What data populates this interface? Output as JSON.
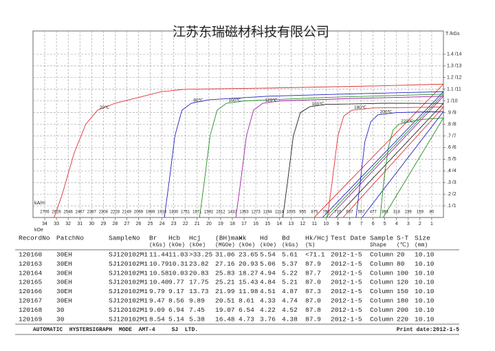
{
  "chart_data": {
    "type": "line",
    "title": "江苏东瑞磁材科技有限公司",
    "x_label": "kOe",
    "x2_label": "kA/m",
    "y_label": "T /kGs",
    "xlim": [
      35,
      0
    ],
    "xticks": [
      34,
      33,
      32,
      31,
      30,
      29,
      28,
      27,
      26,
      25,
      24,
      23,
      22,
      21,
      20,
      19,
      18,
      17,
      16,
      15,
      14,
      13,
      12,
      11,
      10,
      9,
      8,
      7,
      6,
      5,
      4,
      3,
      2,
      1
    ],
    "x2lim": [
      2785,
      0
    ],
    "x2ticks": [
      2706,
      2626,
      2546,
      2467,
      2387,
      2308,
      2228,
      2149,
      2069,
      1989,
      1910,
      1830,
      1751,
      1671,
      1592,
      1512,
      1432,
      1353,
      1273,
      1194,
      1114,
      1035,
      955,
      875,
      796,
      716,
      637,
      557,
      477,
      398,
      318,
      239,
      159,
      80
    ],
    "ylim": [
      0,
      1.6
    ],
    "yticks": [
      {
        "value": 0.1,
        "label": ".1 /1"
      },
      {
        "value": 0.2,
        "label": ".2 /2"
      },
      {
        "value": 0.3,
        "label": ".3 /3"
      },
      {
        "value": 0.4,
        "label": ".4 /4"
      },
      {
        "value": 0.5,
        "label": ".5 /5"
      },
      {
        "value": 0.6,
        "label": ".6 /6"
      },
      {
        "value": 0.7,
        "label": ".7 /7"
      },
      {
        "value": 0.8,
        "label": ".8 /8"
      },
      {
        "value": 0.9,
        "label": ".9 /9"
      },
      {
        "value": 1.0,
        "label": "1 /10"
      },
      {
        "value": 1.1,
        "label": "1.1 /11"
      },
      {
        "value": 1.2,
        "label": "1.2 /12"
      },
      {
        "value": 1.3,
        "label": "1.3 /13"
      },
      {
        "value": 1.4,
        "label": "1.4 /14"
      }
    ],
    "grid": true,
    "series": [
      {
        "name": "20℃",
        "color": "#e03030",
        "x": [
          33.2,
          32.5,
          31.5,
          30.5,
          29.5,
          28,
          26,
          24,
          22,
          15,
          5,
          0
        ],
        "values": [
          0,
          0.2,
          0.55,
          0.8,
          0.92,
          0.98,
          1.03,
          1.08,
          1.1,
          1.11,
          1.13,
          1.144
        ],
        "b_x": [
          11.03,
          0
        ],
        "b_values": [
          0,
          1.144
        ]
      },
      {
        "name": "80℃",
        "color": "#2020c0",
        "x": [
          23.8,
          23.4,
          22.9,
          22.3,
          21.5,
          20,
          15,
          8,
          0
        ],
        "values": [
          0,
          0.3,
          0.7,
          0.92,
          0.98,
          1.01,
          1.04,
          1.06,
          1.079
        ],
        "b_x": [
          10.31,
          0
        ],
        "b_values": [
          0,
          1.079
        ]
      },
      {
        "name": "100℃",
        "color": "#209020",
        "x": [
          20.8,
          20.4,
          19.9,
          19.3,
          18.5,
          17,
          10,
          0
        ],
        "values": [
          0,
          0.3,
          0.7,
          0.92,
          0.98,
          1.0,
          1.03,
          1.058
        ],
        "b_x": [
          10.03,
          0
        ],
        "b_values": [
          0,
          1.058
        ]
      },
      {
        "name": "120℃",
        "color": "#a020a0",
        "x": [
          17.7,
          17.3,
          16.8,
          16.2,
          15.4,
          14,
          8,
          0
        ],
        "values": [
          0,
          0.3,
          0.7,
          0.92,
          0.98,
          1.0,
          1.02,
          1.04
        ],
        "b_x": [
          9.77,
          0
        ],
        "b_values": [
          0,
          1.04
        ]
      },
      {
        "name": "150℃",
        "color": "#202020",
        "x": [
          13.7,
          13.3,
          12.8,
          12.2,
          11.4,
          10,
          5,
          0
        ],
        "values": [
          0,
          0.3,
          0.7,
          0.9,
          0.95,
          0.97,
          0.98,
          0.979
        ],
        "b_x": [
          9.17,
          0
        ],
        "b_values": [
          0,
          0.979
        ]
      },
      {
        "name": "180℃",
        "color": "#e03030",
        "x": [
          9.9,
          9.5,
          9.0,
          8.5,
          7.8,
          6,
          0
        ],
        "values": [
          0,
          0.3,
          0.7,
          0.87,
          0.92,
          0.94,
          0.947
        ],
        "b_x": [
          8.56,
          0
        ],
        "b_values": [
          0,
          0.947
        ]
      },
      {
        "name": "200℃",
        "color": "#2020c0",
        "x": [
          7.45,
          7.1,
          6.7,
          6.2,
          5.6,
          4,
          0
        ],
        "values": [
          0,
          0.3,
          0.65,
          0.82,
          0.88,
          0.9,
          0.909
        ],
        "b_x": [
          6.94,
          0
        ],
        "b_values": [
          0,
          0.909
        ]
      },
      {
        "name": "220℃",
        "color": "#209020",
        "x": [
          5.4,
          5.1,
          4.7,
          4.3,
          3.8,
          2,
          0
        ],
        "values": [
          0,
          0.3,
          0.6,
          0.75,
          0.8,
          0.84,
          0.854
        ],
        "b_x": [
          5.14,
          0
        ],
        "b_values": [
          0,
          0.854
        ]
      }
    ]
  },
  "table": {
    "header": [
      "RecordNo",
      "PatchNo",
      "SampleNo",
      "Br",
      "Hcb",
      "Hcj",
      "(BH)max",
      "Hk",
      "Hd",
      "Bd",
      "Hk/Hcj",
      "Test Date",
      "Sample",
      "S-T",
      "Size"
    ],
    "units": [
      null,
      null,
      null,
      "(kGs)",
      "(kOe)",
      "(kOe)",
      "(MGOe)",
      "(kOe)",
      "(kOe)",
      "(kGs)",
      "(%)",
      null,
      "Shape",
      "(℃)",
      "(mm)"
    ],
    "row_colors": [
      "#e03030",
      "#2020c0",
      "#209020",
      "#a020a0",
      "#202020",
      "#e03030",
      "#2020c0",
      "#209020"
    ],
    "rows": [
      [
        "120160",
        "30EH",
        "SJ120102M1",
        "11.44",
        "11.03",
        ">33.25",
        "31.06",
        "23.65",
        "5.54",
        "5.61",
        "<71.1",
        "2012-1-5",
        "Column",
        "20",
        "10.10"
      ],
      [
        "120163",
        "30EH",
        "SJ120102M1",
        "10.79",
        "10.31",
        "23.82",
        "27.16",
        "20.93",
        "5.06",
        "5.37",
        "87.9",
        "2012-1-5",
        "Column",
        "80",
        "10.10"
      ],
      [
        "120164",
        "30EH",
        "SJ120102M1",
        "10.58",
        "10.03",
        "20.83",
        "25.83",
        "18.27",
        "4.94",
        "5.22",
        "87.7",
        "2012-1-5",
        "Column",
        "100",
        "10.10"
      ],
      [
        "120165",
        "30EH",
        "SJ120102M1",
        "10.40",
        "9.77",
        "17.75",
        "25.21",
        "15.43",
        "4.84",
        "5.21",
        "87.0",
        "2012-1-5",
        "Column",
        "120",
        "10.10"
      ],
      [
        "120166",
        "30EH",
        "SJ120102M1",
        "9.79",
        "9.17",
        "13.73",
        "21.99",
        "11.98",
        "4.51",
        "4.87",
        "87.3",
        "2012-1-5",
        "Column",
        "150",
        "10.10"
      ],
      [
        "120167",
        "30EH",
        "SJ120102M1",
        "9.47",
        "8.56",
        "9.89",
        "20.51",
        "8.61",
        "4.33",
        "4.74",
        "87.0",
        "2012-1-5",
        "Column",
        "180",
        "10.10"
      ],
      [
        "120168",
        "30",
        "SJ120102M1",
        "9.09",
        "6.94",
        "7.45",
        "19.07",
        "6.54",
        "4.22",
        "4.52",
        "87.8",
        "2012-1-5",
        "Column",
        "200",
        "10.10"
      ],
      [
        "120169",
        "30",
        "SJ120102M1",
        "8.54",
        "5.14",
        "5.38",
        "16.48",
        "4.73",
        "3.76",
        "4.38",
        "87.9",
        "2012-1-5",
        "Column",
        "220",
        "10.10"
      ]
    ]
  },
  "footer": {
    "left": "AUTOMATIC  HYSTERSIGRAPH  MODE  AMT-4     SJ  LTD.",
    "right": "Print date:2012-1-5"
  }
}
